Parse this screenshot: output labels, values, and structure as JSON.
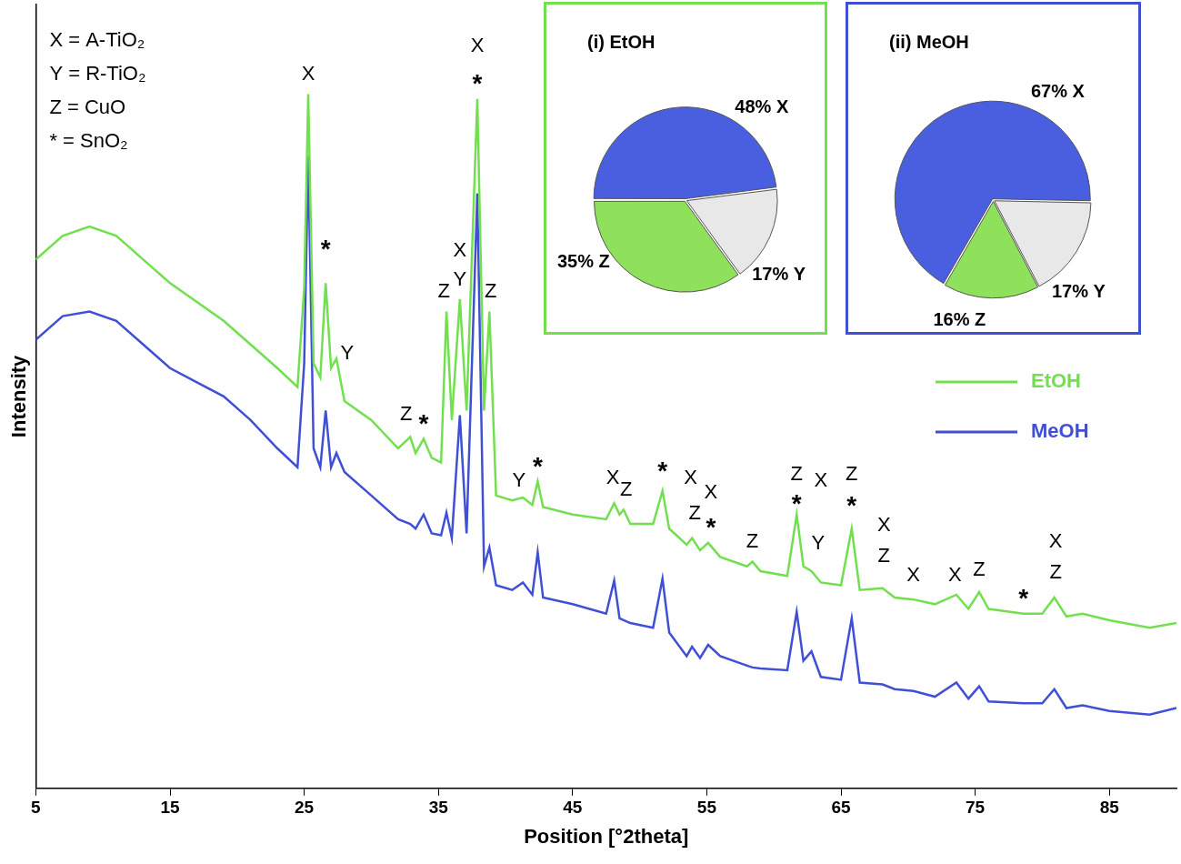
{
  "chart_data": [
    {
      "type": "line",
      "x_label": "Position [°2theta]",
      "y_label": "Intensity",
      "x": [
        5,
        7,
        9,
        11,
        13,
        15,
        17,
        19,
        21,
        23,
        24.5,
        25.0,
        25.3,
        25.7,
        26.2,
        26.6,
        27.0,
        27.4,
        28,
        30,
        32,
        32.9,
        33.3,
        33.9,
        34.5,
        35.2,
        35.6,
        36.0,
        36.6,
        37.1,
        37.9,
        38.4,
        38.8,
        39.3,
        40.5,
        41.3,
        42.0,
        42.4,
        42.8,
        45,
        47.5,
        48.1,
        48.5,
        48.8,
        49.3,
        51,
        51.7,
        52.2,
        53.5,
        53.9,
        54.5,
        55.1,
        56,
        58,
        58.4,
        59,
        61,
        61.7,
        62.2,
        62.8,
        63.5,
        65,
        65.8,
        66.4,
        68.1,
        69,
        70.4,
        72,
        73.6,
        74.5,
        75.3,
        76,
        78.6,
        80,
        80.9,
        81.8,
        83,
        85,
        88,
        90
      ],
      "series": [
        {
          "name": "EtOH",
          "color": "#72e04e",
          "values": [
            560,
            585,
            595,
            585,
            560,
            535,
            515,
            495,
            470,
            445,
            425,
            530,
            735,
            450,
            435,
            535,
            445,
            455,
            410,
            390,
            360,
            372,
            355,
            370,
            350,
            345,
            505,
            390,
            518,
            400,
            730,
            400,
            505,
            310,
            305,
            308,
            300,
            325,
            298,
            290,
            285,
            302,
            290,
            295,
            280,
            280,
            315,
            275,
            258,
            265,
            252,
            260,
            245,
            235,
            240,
            230,
            225,
            290,
            235,
            230,
            218,
            215,
            275,
            210,
            212,
            202,
            200,
            195,
            205,
            190,
            208,
            190,
            185,
            185,
            202,
            182,
            185,
            178,
            170,
            175
          ]
        },
        {
          "name": "MeOH",
          "color": "#3f4fd6",
          "values": [
            475,
            500,
            505,
            495,
            470,
            445,
            430,
            415,
            390,
            360,
            340,
            450,
            670,
            360,
            340,
            400,
            340,
            355,
            335,
            310,
            285,
            280,
            275,
            290,
            270,
            268,
            292,
            265,
            395,
            270,
            630,
            235,
            255,
            215,
            210,
            218,
            205,
            250,
            202,
            195,
            185,
            220,
            180,
            178,
            175,
            170,
            222,
            165,
            140,
            150,
            138,
            152,
            140,
            130,
            128,
            127,
            125,
            187,
            135,
            145,
            118,
            115,
            180,
            112,
            110,
            105,
            103,
            97,
            112,
            95,
            108,
            92,
            90,
            90,
            105,
            85,
            88,
            82,
            78,
            85
          ]
        }
      ],
      "xlim": [
        5,
        90
      ],
      "xticks": [
        5,
        15,
        25,
        35,
        45,
        55,
        65,
        75,
        85
      ],
      "ylim": [
        0,
        830
      ],
      "tick_labels": "x",
      "grid": false,
      "legend": "right",
      "peak_key": [
        "X = A-TiO₂",
        "Y = R-TiO₂",
        "Z = CuO",
        "* = SnO₂"
      ],
      "annotations": [
        {
          "text": "X",
          "x": 25.3,
          "y": 745
        },
        {
          "text": "*",
          "x": 26.6,
          "y": 565
        },
        {
          "text": "Y",
          "x": 28.2,
          "y": 450
        },
        {
          "text": "Z",
          "x": 32.6,
          "y": 385
        },
        {
          "text": "*",
          "x": 33.9,
          "y": 380
        },
        {
          "text": "Z",
          "x": 35.4,
          "y": 515
        },
        {
          "text": "Y",
          "x": 36.6,
          "y": 528
        },
        {
          "text": "X",
          "x": 36.6,
          "y": 558
        },
        {
          "text": "*",
          "x": 37.9,
          "y": 740
        },
        {
          "text": "X",
          "x": 37.9,
          "y": 775
        },
        {
          "text": "Z",
          "x": 38.9,
          "y": 515
        },
        {
          "text": "Y",
          "x": 41.0,
          "y": 315
        },
        {
          "text": "*",
          "x": 42.4,
          "y": 335
        },
        {
          "text": "X",
          "x": 48.0,
          "y": 318
        },
        {
          "text": "Z",
          "x": 49.0,
          "y": 305
        },
        {
          "text": "*",
          "x": 51.7,
          "y": 330
        },
        {
          "text": "X",
          "x": 53.8,
          "y": 318
        },
        {
          "text": "Z",
          "x": 54.1,
          "y": 280
        },
        {
          "text": "X",
          "x": 55.3,
          "y": 302
        },
        {
          "text": "*",
          "x": 55.3,
          "y": 270
        },
        {
          "text": "Z",
          "x": 58.4,
          "y": 250
        },
        {
          "text": "Z",
          "x": 61.7,
          "y": 322
        },
        {
          "text": "*",
          "x": 61.7,
          "y": 295
        },
        {
          "text": "X",
          "x": 63.5,
          "y": 315
        },
        {
          "text": "Y",
          "x": 63.3,
          "y": 248
        },
        {
          "text": "Z",
          "x": 65.8,
          "y": 322
        },
        {
          "text": "*",
          "x": 65.8,
          "y": 293
        },
        {
          "text": "X",
          "x": 68.2,
          "y": 268
        },
        {
          "text": "Z",
          "x": 68.2,
          "y": 235
        },
        {
          "text": "X",
          "x": 70.4,
          "y": 215
        },
        {
          "text": "X",
          "x": 73.5,
          "y": 215
        },
        {
          "text": "Z",
          "x": 75.3,
          "y": 220
        },
        {
          "text": "*",
          "x": 78.6,
          "y": 195
        },
        {
          "text": "X",
          "x": 81.0,
          "y": 250
        },
        {
          "text": "Z",
          "x": 81.0,
          "y": 218
        }
      ]
    },
    {
      "type": "pie",
      "title": "(i) EtOH",
      "categories": [
        "X",
        "Y",
        "Z"
      ],
      "values": [
        48,
        17,
        35
      ],
      "value_labels": [
        "48% X",
        "17% Y",
        "35% Z"
      ],
      "colors": [
        "#4a5ee0",
        "#e8e8e8",
        "#8fe05a"
      ],
      "data_labels": true
    },
    {
      "type": "pie",
      "title": "(ii) MeOH",
      "categories": [
        "X",
        "Y",
        "Z"
      ],
      "values": [
        67,
        17,
        16
      ],
      "value_labels": [
        "67% X",
        "17% Y",
        "16% Z"
      ],
      "colors": [
        "#4a5ee0",
        "#e8e8e8",
        "#8fe05a"
      ],
      "data_labels": true
    }
  ]
}
